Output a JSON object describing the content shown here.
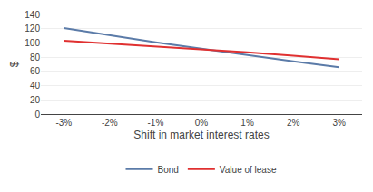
{
  "chart_data": {
    "type": "line",
    "x": [
      -3,
      -2,
      -1,
      0,
      1,
      2,
      3
    ],
    "series": [
      {
        "name": "Bond",
        "color": "#5b7ba8",
        "values": [
          121,
          111,
          101,
          92,
          83,
          74,
          66
        ]
      },
      {
        "name": "Value of lease",
        "color": "#e03030",
        "values": [
          103,
          99,
          95,
          91,
          87,
          82,
          77
        ]
      }
    ],
    "xlabel": "Shift in market interest rates",
    "ylabel": "$",
    "xlim": [
      -3.5,
      3.5
    ],
    "xticks": [
      {
        "value": -3,
        "label": "-3%"
      },
      {
        "value": -2,
        "label": "-2%"
      },
      {
        "value": -1,
        "label": "-1%"
      },
      {
        "value": 0,
        "label": "0%"
      },
      {
        "value": 1,
        "label": "1%"
      },
      {
        "value": 2,
        "label": "2%"
      },
      {
        "value": 3,
        "label": "3%"
      }
    ],
    "ylim": [
      0,
      140
    ],
    "yticks": [
      0,
      20,
      40,
      60,
      80,
      100,
      120,
      140
    ],
    "grid": "y",
    "legend": "bottom"
  }
}
